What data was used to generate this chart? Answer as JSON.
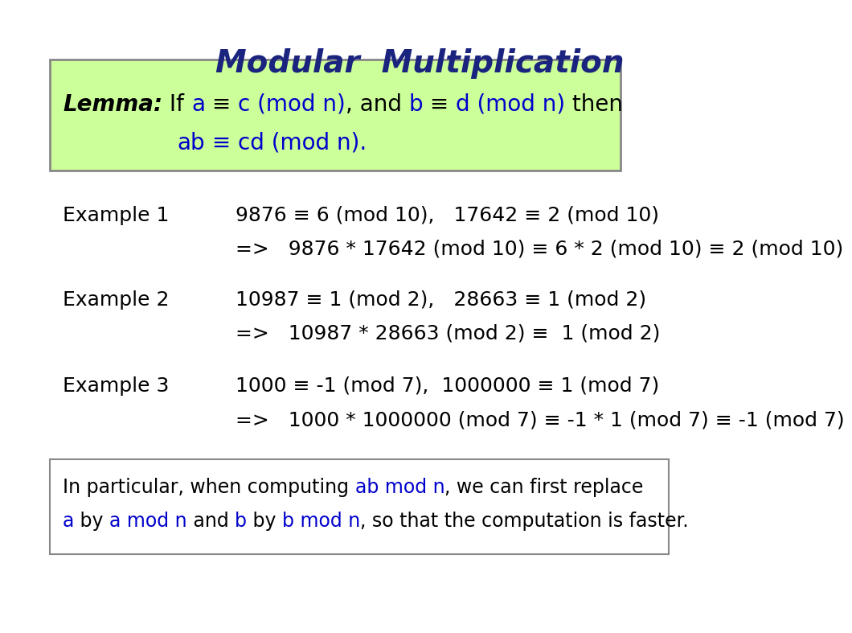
{
  "title": "Modular  Multiplication",
  "title_color": "#1a237e",
  "title_fontsize": 28,
  "bg_color": "#ffffff",
  "lemma_box_color": "#ccff99",
  "lemma_box_edge": "#888888",
  "lemma_line1_parts": [
    {
      "text": "Lemma:",
      "style": "bold_italic",
      "color": "#000000"
    },
    {
      "text": " If ",
      "style": "normal",
      "color": "#000000"
    },
    {
      "text": "a",
      "style": "normal",
      "color": "#0000cc"
    },
    {
      "text": " ≡ ",
      "style": "normal",
      "color": "#000000"
    },
    {
      "text": "c (mod n)",
      "style": "normal",
      "color": "#0000cc"
    },
    {
      "text": ", and ",
      "style": "normal",
      "color": "#000000"
    },
    {
      "text": "b",
      "style": "normal",
      "color": "#0000cc"
    },
    {
      "text": " ≡ ",
      "style": "normal",
      "color": "#000000"
    },
    {
      "text": "d (mod n)",
      "style": "normal",
      "color": "#0000cc"
    },
    {
      "text": " then",
      "style": "normal",
      "color": "#000000"
    }
  ],
  "lemma_line2_parts": [
    {
      "text": "ab",
      "style": "normal",
      "color": "#0000cc"
    },
    {
      "text": " ≡ ",
      "style": "normal",
      "color": "#0000cc"
    },
    {
      "text": "cd (mod n).",
      "style": "normal",
      "color": "#0000cc"
    }
  ],
  "examples": [
    {
      "label": "Example 1",
      "line1": "9876 ≡ 6 (mod 10),   17642 ≡ 2 (mod 10)",
      "line2": "=>   9876 * 17642 (mod 10) ≡ 6 * 2 (mod 10) ≡ 2 (mod 10)"
    },
    {
      "label": "Example 2",
      "line1": "10987 ≡ 1 (mod 2),   28663 ≡ 1 (mod 2)",
      "line2": "=>   10987 * 28663 (mod 2) ≡  1 (mod 2)"
    },
    {
      "label": "Example 3",
      "line1": "1000 ≡ -1 (mod 7),  1000000 ≡ 1 (mod 7)",
      "line2": "=>   1000 * 1000000 (mod 7) ≡ -1 * 1 (mod 7) ≡ -1 (mod 7)"
    }
  ],
  "footer_box_edge": "#888888",
  "footer_line1_parts": [
    {
      "text": "In particular, when computing ",
      "style": "normal",
      "color": "#000000"
    },
    {
      "text": "ab mod n",
      "style": "normal",
      "color": "#0000cc"
    },
    {
      "text": ", we can first replace",
      "style": "normal",
      "color": "#000000"
    }
  ],
  "footer_line2_parts": [
    {
      "text": "a",
      "style": "normal",
      "color": "#0000cc"
    },
    {
      "text": " by ",
      "style": "normal",
      "color": "#000000"
    },
    {
      "text": "a mod n",
      "style": "normal",
      "color": "#0000cc"
    },
    {
      "text": " and ",
      "style": "normal",
      "color": "#000000"
    },
    {
      "text": "b",
      "style": "normal",
      "color": "#0000cc"
    },
    {
      "text": " by ",
      "style": "normal",
      "color": "#000000"
    },
    {
      "text": "b mod n",
      "style": "normal",
      "color": "#0000cc"
    },
    {
      "text": ", so that the computation is faster.",
      "style": "normal",
      "color": "#000000"
    }
  ]
}
